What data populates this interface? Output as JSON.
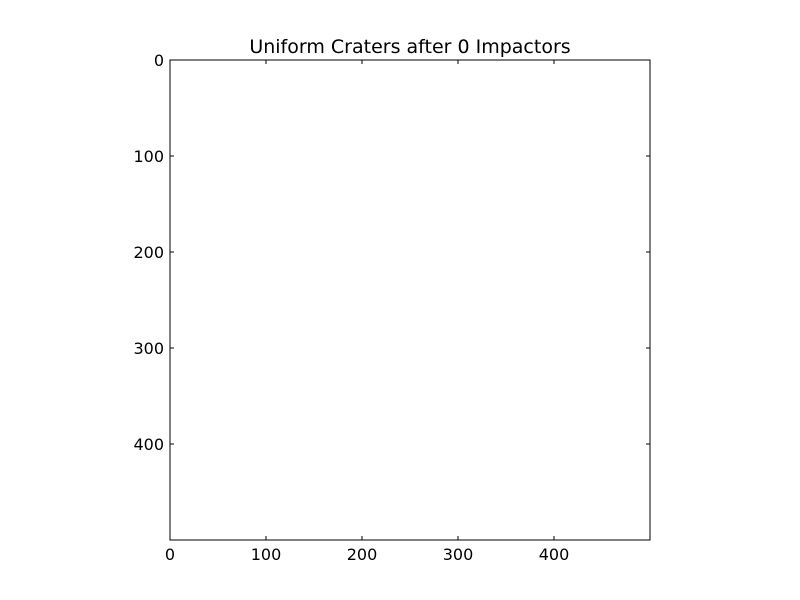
{
  "chart_data": {
    "type": "heatmap",
    "title": "Uniform Craters after 0 Impactors",
    "xlabel": "",
    "ylabel": "",
    "xlim": [
      0,
      500
    ],
    "ylim": [
      500,
      0
    ],
    "x_ticks": [
      0,
      100,
      200,
      300,
      400
    ],
    "y_ticks": [
      0,
      100,
      200,
      300,
      400
    ],
    "grid": false,
    "values": [],
    "colors": {
      "background": "#ffffff",
      "axes": "#000000",
      "text": "#000000"
    }
  }
}
